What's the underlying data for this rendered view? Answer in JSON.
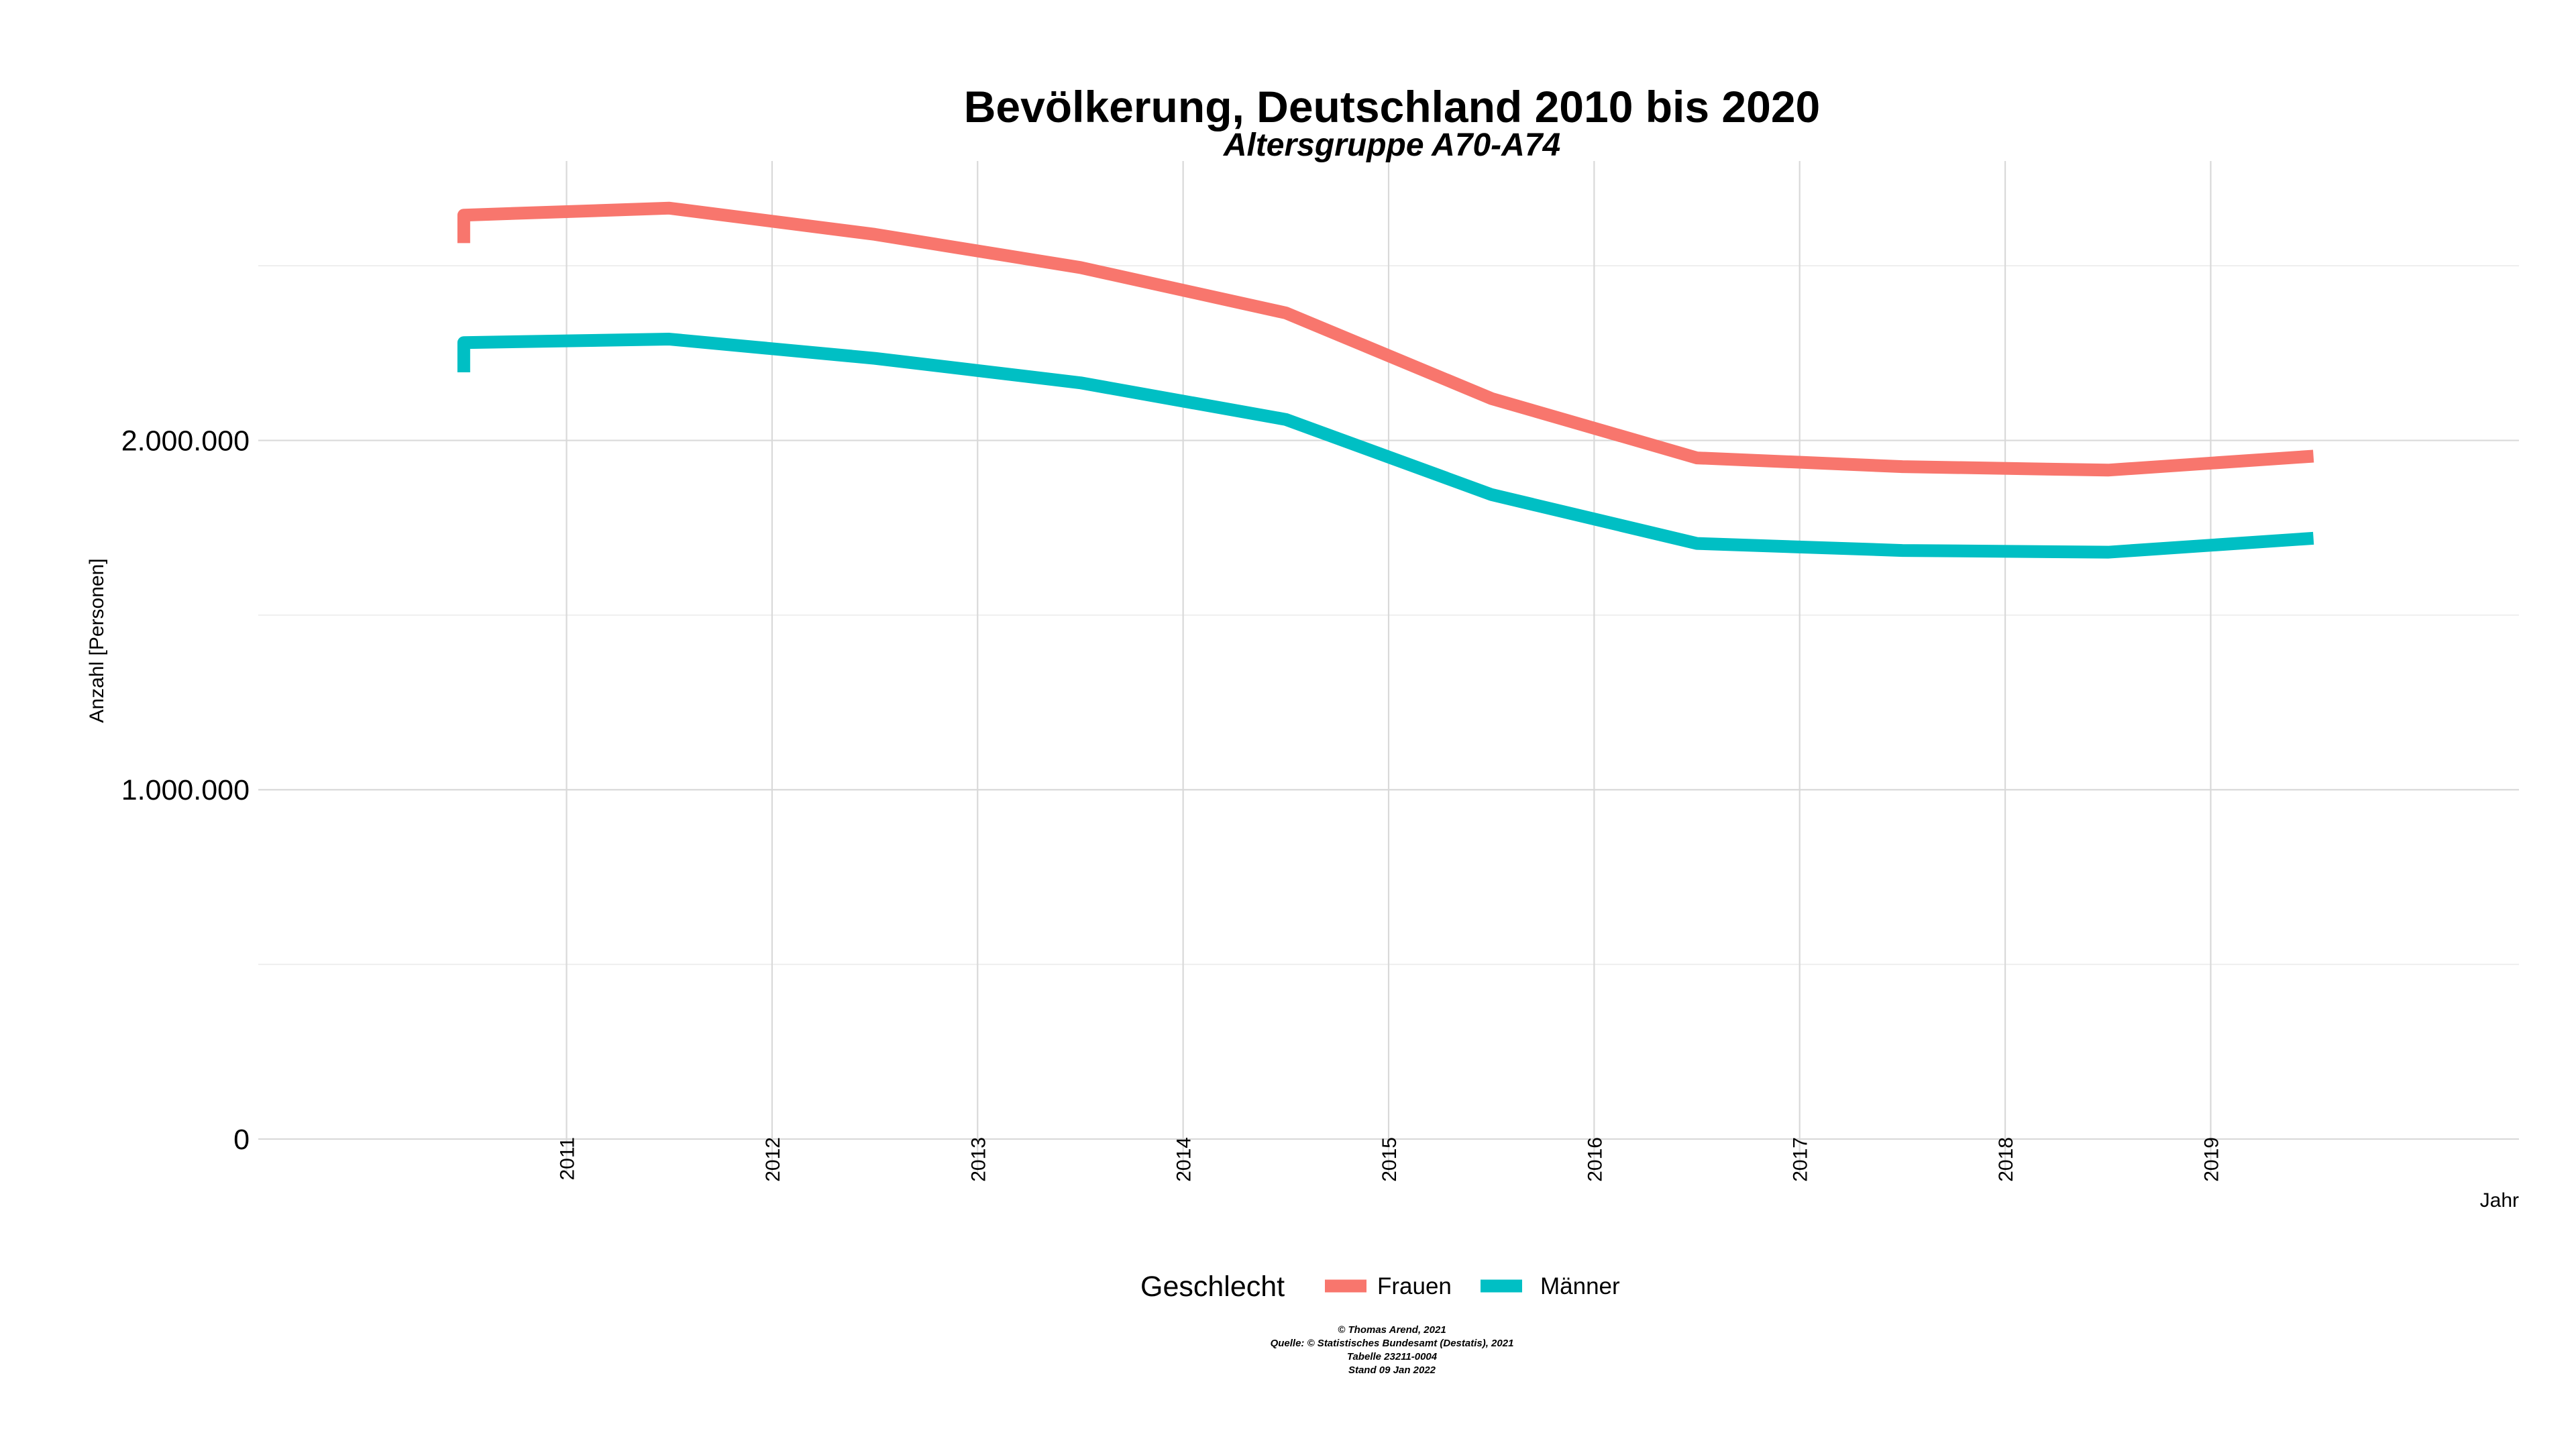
{
  "chart_data": {
    "type": "line",
    "title": "Bevölkerung, Deutschland 2010 bis 2020",
    "subtitle": "Altersgruppe A70-A74",
    "xlabel": "Jahr",
    "ylabel": "Anzahl [Personen]",
    "x": [
      2010.5,
      2011.5,
      2012.5,
      2013.5,
      2014.5,
      2015.5,
      2016.5,
      2017.5,
      2018.5,
      2019.5
    ],
    "x_ticks": [
      "2011",
      "2012",
      "2013",
      "2014",
      "2015",
      "2016",
      "2017",
      "2018",
      "2019"
    ],
    "x_tick_values": [
      2011,
      2012,
      2013,
      2014,
      2015,
      2016,
      2017,
      2018,
      2019
    ],
    "xlim": [
      2009.5,
      2020.5
    ],
    "y_ticks": [
      "0",
      "1.000.000",
      "2.000.000"
    ],
    "y_tick_values": [
      0,
      1000000,
      2000000
    ],
    "ylim": [
      -100000,
      2800000
    ],
    "grid": true,
    "legend": {
      "title": "Geschlecht",
      "position": "bottom"
    },
    "series": [
      {
        "name": "Frauen",
        "color": "#F8766D",
        "start_value": 2565000,
        "values": [
          2645000,
          2665000,
          2590000,
          2495000,
          2365000,
          2120000,
          1950000,
          1925000,
          1915000,
          1955000
        ]
      },
      {
        "name": "Männer",
        "color": "#00BFC4",
        "start_value": 2195000,
        "values": [
          2280000,
          2290000,
          2235000,
          2165000,
          2060000,
          1845000,
          1705000,
          1685000,
          1680000,
          1720000
        ]
      }
    ],
    "caption": [
      "© Thomas Arend, 2021",
      "Quelle: © Statistisches Bundesamt (Destatis), 2021",
      "Tabelle 23211-0004",
      "Stand 09 Jan 2022"
    ]
  }
}
